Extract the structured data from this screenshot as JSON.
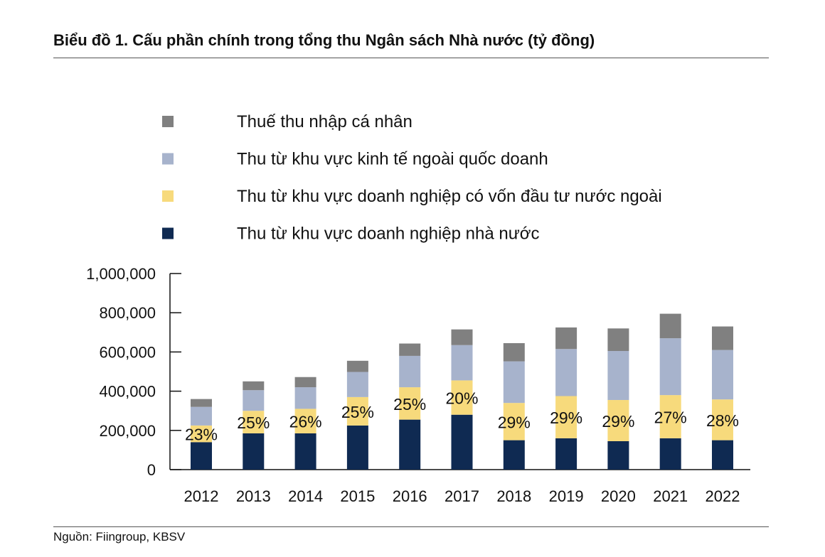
{
  "header": {
    "title": "Biểu đồ 1. Cấu phần chính trong tổng thu Ngân sách Nhà nước (tỷ đồng)"
  },
  "footer": {
    "source": "Nguồn: Fiingroup, KBSV"
  },
  "chart_data": {
    "type": "bar",
    "stacked": true,
    "categories": [
      "2012",
      "2013",
      "2014",
      "2015",
      "2016",
      "2017",
      "2018",
      "2019",
      "2020",
      "2021",
      "2022"
    ],
    "series": [
      {
        "name": "Thu từ khu vực doanh nghiệp nhà nước",
        "color": "#0f2a52",
        "values": [
          140000,
          185000,
          185000,
          225000,
          255000,
          280000,
          150000,
          160000,
          145000,
          160000,
          150000
        ]
      },
      {
        "name": "Thu từ khu vực doanh nghiệp có vốn đầu tư nước ngoài",
        "color": "#f7da7c",
        "values": [
          85000,
          115000,
          125000,
          145000,
          165000,
          175000,
          190000,
          215000,
          210000,
          220000,
          208000
        ]
      },
      {
        "name": "Thu từ khu vực kinh tế ngoài quốc doanh",
        "color": "#a7b3cc",
        "values": [
          95000,
          105000,
          110000,
          128000,
          160000,
          180000,
          212000,
          240000,
          250000,
          290000,
          252000
        ]
      },
      {
        "name": "Thuế thu nhập cá nhân",
        "color": "#808080",
        "values": [
          40000,
          45000,
          52000,
          57000,
          63000,
          80000,
          93000,
          110000,
          115000,
          125000,
          120000
        ]
      }
    ],
    "data_labels": [
      "23%",
      "25%",
      "26%",
      "25%",
      "25%",
      "20%",
      "29%",
      "29%",
      "29%",
      "27%",
      "28%"
    ],
    "y_ticks": [
      "1,000,000",
      "800,000",
      "600,000",
      "400,000",
      "200,000",
      "0"
    ],
    "ylim": [
      0,
      1000000
    ],
    "legend_position": "top",
    "grid": false
  }
}
